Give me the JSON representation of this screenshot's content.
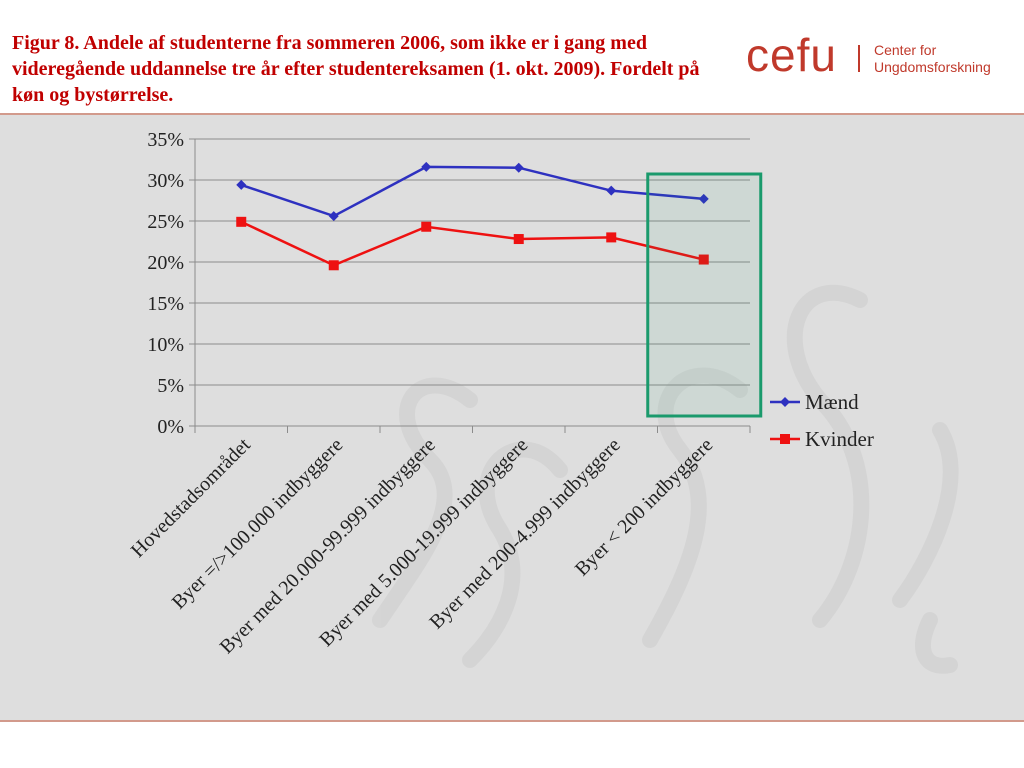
{
  "header": {
    "title": "Figur 8. Andele af studenterne fra sommeren 2006, som ikke er i gang med videregående uddannelse tre år efter studentereksamen (1. okt. 2009). Fordelt på køn og bystørrelse.",
    "logo_word": "cefu",
    "logo_line1": "Center for",
    "logo_line2": "Ungdomsforskning"
  },
  "chart_data": {
    "type": "line",
    "categories": [
      "Hovedstadsområdet",
      "Byer =/>100.000 indbyggere",
      "Byer med 20.000-99.999 indbyggere",
      "Byer med 5.000-19.999 indbyggere",
      "Byer med 200-4.999 indbyggere",
      "Byer < 200 indbyggere"
    ],
    "series": [
      {
        "name": "Mænd",
        "values": [
          29.4,
          25.6,
          31.6,
          31.5,
          28.7,
          27.7
        ],
        "color": "#2e31c0",
        "marker": "diamond"
      },
      {
        "name": "Kvinder",
        "values": [
          24.9,
          19.6,
          24.3,
          22.8,
          23.0,
          20.3
        ],
        "color": "#ee1111",
        "marker": "square"
      }
    ],
    "ylim": [
      0,
      35
    ],
    "yticks": [
      "0%",
      "5%",
      "10%",
      "15%",
      "20%",
      "25%",
      "30%",
      "35%"
    ],
    "grid": true,
    "legend": "right",
    "highlight_category": "Byer < 200 indbyggere",
    "highlight_color": "#1a9a6c"
  }
}
